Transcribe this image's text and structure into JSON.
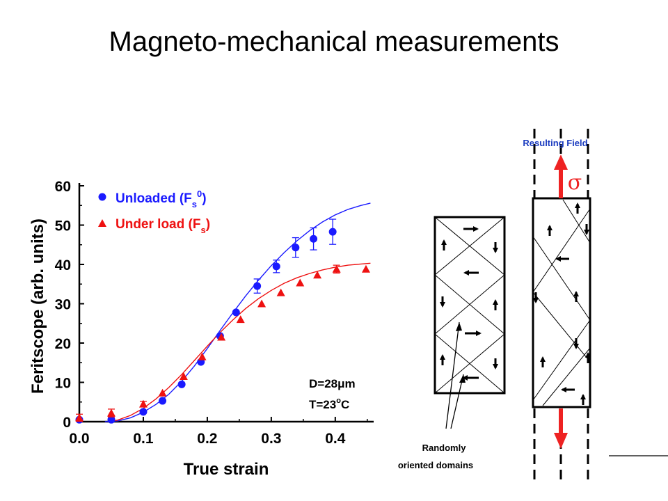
{
  "title": "Magneto-mechanical measurements",
  "colors": {
    "unloaded": "#1a1aff",
    "underload": "#ee1111",
    "arrow_red": "#ee2222",
    "label_blue": "#1a3bbf"
  },
  "chart_data": {
    "type": "scatter",
    "xlabel": "True strain",
    "ylabel": "Feritscope (arb. units)",
    "xlim": [
      0.0,
      0.46
    ],
    "ylim": [
      0,
      60
    ],
    "xticks": [
      "0.0",
      "0.1",
      "0.2",
      "0.3",
      "0.4"
    ],
    "yticks": [
      "0",
      "10",
      "20",
      "30",
      "40",
      "50",
      "60"
    ],
    "legend_position": "top-left",
    "series": [
      {
        "name": "Unloaded (Fs0)",
        "legend_main": "Unloaded (F",
        "legend_sub": "s",
        "legend_sup": "0",
        "legend_close": ")",
        "marker": "circle",
        "x": [
          0.0,
          0.05,
          0.1,
          0.13,
          0.16,
          0.19,
          0.22,
          0.245,
          0.278,
          0.308,
          0.338,
          0.366,
          0.396
        ],
        "y": [
          0.5,
          0.5,
          2.5,
          5.3,
          9.5,
          15.2,
          21.8,
          27.8,
          34.5,
          39.5,
          44.3,
          46.5,
          48.3
        ],
        "err": [
          0,
          0,
          0,
          0,
          0,
          0,
          0,
          0,
          1.8,
          1.6,
          2.5,
          2.8,
          3.2
        ],
        "fit_x": [
          0.04,
          0.06,
          0.08,
          0.1,
          0.12,
          0.14,
          0.16,
          0.18,
          0.2,
          0.22,
          0.24,
          0.26,
          0.28,
          0.3,
          0.32,
          0.34,
          0.36,
          0.38,
          0.4,
          0.42,
          0.44,
          0.455
        ],
        "fit_y": [
          0.0,
          0.2,
          1.0,
          2.4,
          4.4,
          7.0,
          10.3,
          14.2,
          18.6,
          23.2,
          27.7,
          32.0,
          36.0,
          39.7,
          43.0,
          46.0,
          48.6,
          50.8,
          52.6,
          54.0,
          55.0,
          55.6
        ]
      },
      {
        "name": "Under load (Fs)",
        "legend_main": "Under load (F",
        "legend_sub": "s",
        "legend_sup": "",
        "legend_close": ")",
        "marker": "triangle",
        "x": [
          0.0,
          0.05,
          0.1,
          0.13,
          0.163,
          0.192,
          0.222,
          0.252,
          0.285,
          0.315,
          0.345,
          0.372,
          0.402,
          0.448
        ],
        "y": [
          1.0,
          2.2,
          4.5,
          7.3,
          11.5,
          16.5,
          21.5,
          26.0,
          30.0,
          32.8,
          35.3,
          37.3,
          38.8,
          38.8
        ],
        "err": [
          0.9,
          1.0,
          0.7,
          0,
          0,
          0,
          0,
          0,
          0,
          0,
          0,
          0,
          1.0,
          0
        ],
        "fit_x": [
          0.045,
          0.06,
          0.08,
          0.1,
          0.12,
          0.14,
          0.16,
          0.18,
          0.2,
          0.22,
          0.24,
          0.26,
          0.28,
          0.3,
          0.32,
          0.34,
          0.36,
          0.38,
          0.4,
          0.42,
          0.44,
          0.455
        ],
        "fit_y": [
          0.0,
          0.4,
          1.6,
          3.4,
          5.8,
          8.7,
          12.0,
          15.6,
          19.2,
          22.7,
          25.9,
          28.8,
          31.3,
          33.4,
          35.2,
          36.6,
          37.7,
          38.6,
          39.3,
          39.8,
          40.1,
          40.3
        ]
      }
    ],
    "annotations": {
      "diameter_prefix": "D=28",
      "diameter_unit": "μm",
      "temperature_prefix": "T=23",
      "temperature_degree": "o",
      "temperature_unit": "C"
    }
  },
  "diagram": {
    "resulting_field": "Resulting Field",
    "sigma": "σ",
    "random_label_line1": "Randomly",
    "random_label_line2": "oriented domains"
  }
}
